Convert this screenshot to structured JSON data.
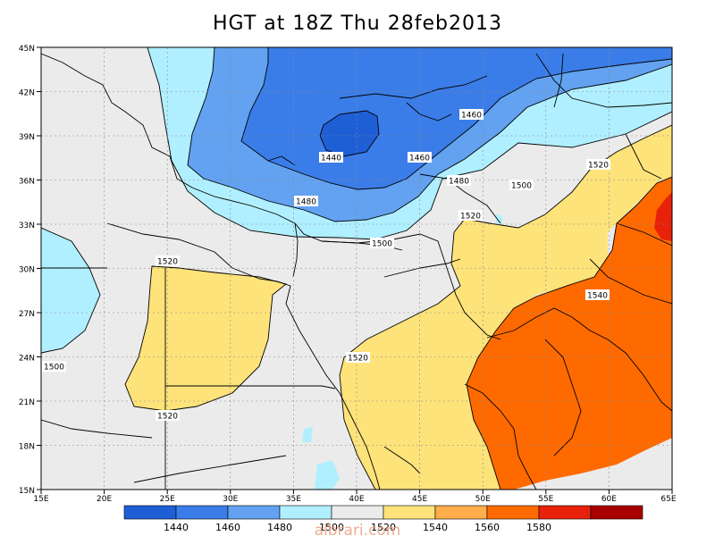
{
  "title": "HGT at 18Z Thu 28feb2013",
  "x_ticks": [
    "15E",
    "20E",
    "25E",
    "30E",
    "35E",
    "40E",
    "45E",
    "50E",
    "55E",
    "60E",
    "65E"
  ],
  "y_ticks": [
    "45N",
    "42N",
    "39N",
    "36N",
    "33N",
    "30N",
    "27N",
    "24N",
    "21N",
    "18N",
    "15N"
  ],
  "contour_labels": [
    "1440",
    "1460",
    "1460",
    "1480",
    "1480",
    "1500",
    "1500",
    "1500",
    "1520",
    "1520",
    "1520",
    "1520",
    "1520",
    "1540"
  ],
  "colorbar": {
    "labels": [
      "1440",
      "1460",
      "1480",
      "1500",
      "1520",
      "1540",
      "1560",
      "1580"
    ],
    "colors": [
      "#1f5fd6",
      "#3b7de8",
      "#62a2f0",
      "#b0efff",
      "#ebebeb",
      "#fde37a",
      "#ffac4a",
      "#ff6a00",
      "#e8220a",
      "#a80000"
    ]
  },
  "watermark": "albrari.com",
  "chart_data": {
    "type": "heatmap",
    "title": "HGT at 18Z Thu 28feb2013",
    "xlim": [
      "15E",
      "65E"
    ],
    "ylim": [
      "15N",
      "45N"
    ],
    "contour_levels": [
      1440,
      1460,
      1480,
      1500,
      1520,
      1540,
      1560,
      1580
    ],
    "grid": true
  }
}
